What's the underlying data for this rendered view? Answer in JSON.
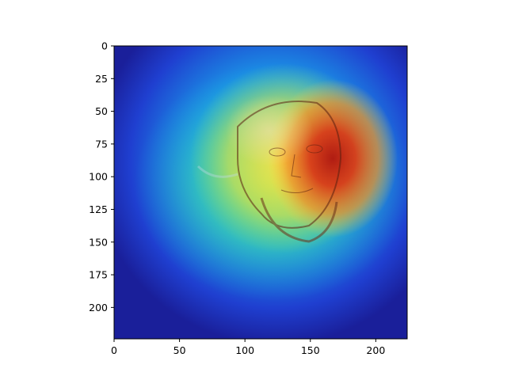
{
  "chart_data": {
    "type": "heatmap",
    "title": "",
    "xlabel": "",
    "ylabel": "",
    "image_size": [
      224,
      224
    ],
    "xlim": [
      0,
      224
    ],
    "ylim": [
      224,
      0
    ],
    "y_axis_inverted": true,
    "colormap": "jet",
    "overlay": "attention heatmap blended over a grayscale portrait photograph of a bearded man's face",
    "x_ticks": [
      0,
      50,
      100,
      150,
      200
    ],
    "y_ticks": [
      0,
      25,
      50,
      75,
      100,
      125,
      150,
      175,
      200
    ],
    "x_tick_labels": [
      "0",
      "50",
      "100",
      "150",
      "200"
    ],
    "y_tick_labels": [
      "0",
      "25",
      "50",
      "75",
      "100",
      "125",
      "150",
      "175",
      "200"
    ],
    "hotspots": [
      {
        "x": 168,
        "y": 90,
        "intensity": 1.0
      },
      {
        "x": 130,
        "y": 75,
        "intensity": 0.75
      }
    ],
    "grid": false,
    "legend": "none"
  }
}
